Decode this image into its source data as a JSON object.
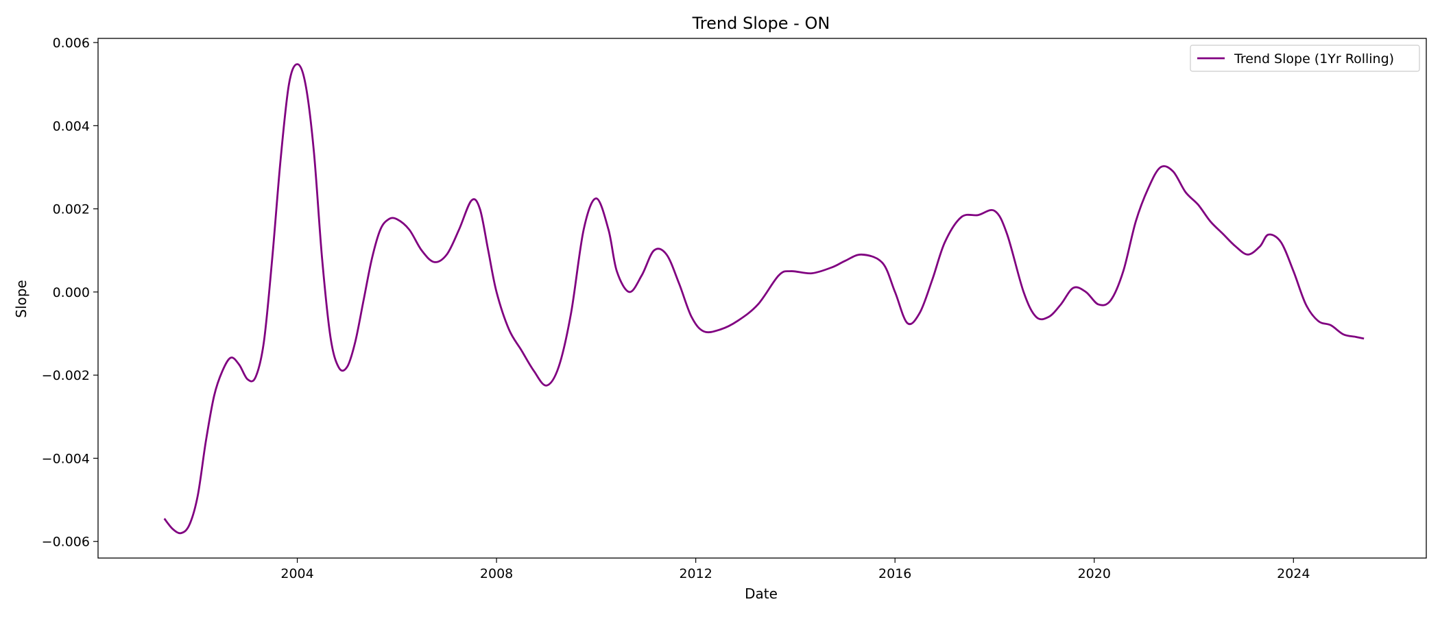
{
  "chart_data": {
    "type": "line",
    "title": "Trend Slope - ON",
    "xlabel": "Date",
    "ylabel": "Slope",
    "xlim": [
      "2000-01-01",
      "2026-09-01"
    ],
    "ylim": [
      -0.0064,
      0.0061
    ],
    "x_ticks": [
      "2004-01-01",
      "2008-01-01",
      "2012-01-01",
      "2016-01-01",
      "2020-01-01",
      "2024-01-01"
    ],
    "x_tick_labels": [
      "2004",
      "2008",
      "2012",
      "2016",
      "2020",
      "2024"
    ],
    "y_ticks": [
      -0.006,
      -0.004,
      -0.002,
      0.0,
      0.002,
      0.004,
      0.006
    ],
    "y_tick_labels": [
      "−0.006",
      "−0.004",
      "−0.002",
      "0.000",
      "0.002",
      "0.004",
      "0.006"
    ],
    "grid": false,
    "legend_position": "top-right",
    "series": [
      {
        "name": "Trend Slope (1Yr Rolling)",
        "color": "#800080",
        "points": [
          [
            "2001-05-01",
            -0.00545
          ],
          [
            "2001-07-01",
            -0.0057
          ],
          [
            "2001-09-01",
            -0.0058
          ],
          [
            "2001-11-01",
            -0.0056
          ],
          [
            "2002-01-01",
            -0.0049
          ],
          [
            "2002-03-01",
            -0.0036
          ],
          [
            "2002-05-01",
            -0.0025
          ],
          [
            "2002-07-01",
            -0.0019
          ],
          [
            "2002-09-01",
            -0.00158
          ],
          [
            "2002-11-01",
            -0.00175
          ],
          [
            "2003-01-01",
            -0.0021
          ],
          [
            "2003-03-01",
            -0.00205
          ],
          [
            "2003-05-01",
            -0.0012
          ],
          [
            "2003-07-01",
            0.0008
          ],
          [
            "2003-09-01",
            0.0032
          ],
          [
            "2003-11-01",
            0.005
          ],
          [
            "2004-01-01",
            0.00548
          ],
          [
            "2004-03-01",
            0.005
          ],
          [
            "2004-05-01",
            0.0034
          ],
          [
            "2004-07-01",
            0.0008
          ],
          [
            "2004-09-01",
            -0.0011
          ],
          [
            "2004-11-01",
            -0.00182
          ],
          [
            "2005-01-01",
            -0.0018
          ],
          [
            "2005-03-01",
            -0.0012
          ],
          [
            "2005-05-01",
            -0.0002
          ],
          [
            "2005-07-01",
            0.0008
          ],
          [
            "2005-09-01",
            0.0015
          ],
          [
            "2005-11-01",
            0.00175
          ],
          [
            "2006-01-01",
            0.00175
          ],
          [
            "2006-04-01",
            0.0015
          ],
          [
            "2006-07-01",
            0.001
          ],
          [
            "2006-10-01",
            0.00072
          ],
          [
            "2007-01-01",
            0.0009
          ],
          [
            "2007-04-01",
            0.0015
          ],
          [
            "2007-07-01",
            0.0022
          ],
          [
            "2007-09-01",
            0.002
          ],
          [
            "2007-11-01",
            0.001
          ],
          [
            "2008-01-01",
            0.0
          ],
          [
            "2008-04-01",
            -0.0009
          ],
          [
            "2008-07-01",
            -0.0014
          ],
          [
            "2008-10-01",
            -0.0019
          ],
          [
            "2009-01-01",
            -0.00225
          ],
          [
            "2009-04-01",
            -0.0018
          ],
          [
            "2009-07-01",
            -0.0005
          ],
          [
            "2009-10-01",
            0.0015
          ],
          [
            "2010-01-01",
            0.00225
          ],
          [
            "2010-04-01",
            0.0015
          ],
          [
            "2010-06-01",
            0.0005
          ],
          [
            "2010-09-01",
            0.0
          ],
          [
            "2010-12-01",
            0.0004
          ],
          [
            "2011-03-01",
            0.001
          ],
          [
            "2011-06-01",
            0.0009
          ],
          [
            "2011-09-01",
            0.0002
          ],
          [
            "2011-12-01",
            -0.0006
          ],
          [
            "2012-03-01",
            -0.00095
          ],
          [
            "2012-07-01",
            -0.0009
          ],
          [
            "2012-11-01",
            -0.0007
          ],
          [
            "2013-04-01",
            -0.0003
          ],
          [
            "2013-09-01",
            0.0004
          ],
          [
            "2013-12-01",
            0.0005
          ],
          [
            "2014-05-01",
            0.00045
          ],
          [
            "2014-10-01",
            0.0006
          ],
          [
            "2015-01-01",
            0.00075
          ],
          [
            "2015-05-01",
            0.0009
          ],
          [
            "2015-10-01",
            0.0007
          ],
          [
            "2016-01-01",
            0.0
          ],
          [
            "2016-04-01",
            -0.00075
          ],
          [
            "2016-07-01",
            -0.0005
          ],
          [
            "2016-10-01",
            0.0003
          ],
          [
            "2017-01-01",
            0.0012
          ],
          [
            "2017-05-01",
            0.0018
          ],
          [
            "2017-09-01",
            0.00185
          ],
          [
            "2018-01-01",
            0.00195
          ],
          [
            "2018-04-01",
            0.0014
          ],
          [
            "2018-08-01",
            0.0
          ],
          [
            "2018-11-01",
            -0.0006
          ],
          [
            "2019-02-01",
            -0.0006
          ],
          [
            "2019-05-01",
            -0.0003
          ],
          [
            "2019-08-01",
            0.0001
          ],
          [
            "2019-11-01",
            0.0
          ],
          [
            "2020-02-01",
            -0.0003
          ],
          [
            "2020-05-01",
            -0.0002
          ],
          [
            "2020-08-01",
            0.0005
          ],
          [
            "2020-11-01",
            0.0017
          ],
          [
            "2021-02-01",
            0.0025
          ],
          [
            "2021-05-01",
            0.003
          ],
          [
            "2021-08-01",
            0.0029
          ],
          [
            "2021-11-01",
            0.0024
          ],
          [
            "2022-02-01",
            0.0021
          ],
          [
            "2022-05-01",
            0.0017
          ],
          [
            "2022-08-01",
            0.0014
          ],
          [
            "2022-11-01",
            0.0011
          ],
          [
            "2023-02-01",
            0.0009
          ],
          [
            "2023-05-01",
            0.0011
          ],
          [
            "2023-07-01",
            0.00138
          ],
          [
            "2023-10-01",
            0.0012
          ],
          [
            "2024-01-01",
            0.0005
          ],
          [
            "2024-04-01",
            -0.0003
          ],
          [
            "2024-07-01",
            -0.0007
          ],
          [
            "2024-10-01",
            -0.0008
          ],
          [
            "2025-01-01",
            -0.00102
          ],
          [
            "2025-04-01",
            -0.00108
          ],
          [
            "2025-06-01",
            -0.00112
          ]
        ]
      }
    ]
  }
}
